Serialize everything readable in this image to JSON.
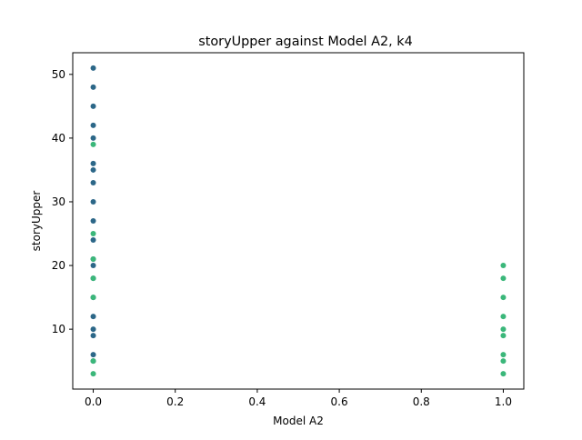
{
  "chart_data": {
    "type": "scatter",
    "title": "storyUpper against Model A2, k4",
    "xlabel": "Model A2",
    "ylabel": "storyUpper",
    "xlim": [
      -0.05,
      1.05
    ],
    "ylim": [
      0.6,
      53.4
    ],
    "xticks": [
      0.0,
      0.2,
      0.4,
      0.6,
      0.8,
      1.0
    ],
    "xtick_labels": [
      "0.0",
      "0.2",
      "0.4",
      "0.6",
      "0.8",
      "1.0"
    ],
    "yticks": [
      10,
      20,
      30,
      40,
      50
    ],
    "ytick_labels": [
      "10",
      "20",
      "30",
      "40",
      "50"
    ],
    "grid": false,
    "legend": "none",
    "colors": {
      "dark": "#2c6788",
      "light": "#3bb77a"
    },
    "series": [
      {
        "color_key": "dark",
        "points": [
          {
            "x": 0,
            "y": 51
          },
          {
            "x": 0,
            "y": 48
          },
          {
            "x": 0,
            "y": 45
          },
          {
            "x": 0,
            "y": 42
          },
          {
            "x": 0,
            "y": 40
          },
          {
            "x": 0,
            "y": 36
          },
          {
            "x": 0,
            "y": 35
          },
          {
            "x": 0,
            "y": 33
          },
          {
            "x": 0,
            "y": 30
          },
          {
            "x": 0,
            "y": 27
          },
          {
            "x": 0,
            "y": 24
          },
          {
            "x": 0,
            "y": 21
          },
          {
            "x": 0,
            "y": 20
          },
          {
            "x": 0,
            "y": 18
          },
          {
            "x": 0,
            "y": 15
          },
          {
            "x": 0,
            "y": 12
          },
          {
            "x": 0,
            "y": 10
          },
          {
            "x": 0,
            "y": 9
          },
          {
            "x": 0,
            "y": 6
          },
          {
            "x": 0,
            "y": 5
          }
        ]
      },
      {
        "color_key": "light",
        "points": [
          {
            "x": 0,
            "y": 39
          },
          {
            "x": 0,
            "y": 25
          },
          {
            "x": 0,
            "y": 21
          },
          {
            "x": 0,
            "y": 18
          },
          {
            "x": 0,
            "y": 15
          },
          {
            "x": 0,
            "y": 5
          },
          {
            "x": 0,
            "y": 3
          },
          {
            "x": 1,
            "y": 20
          },
          {
            "x": 1,
            "y": 18
          },
          {
            "x": 1,
            "y": 15
          },
          {
            "x": 1,
            "y": 12
          },
          {
            "x": 1,
            "y": 10
          },
          {
            "x": 1,
            "y": 9
          },
          {
            "x": 1,
            "y": 6
          },
          {
            "x": 1,
            "y": 5
          },
          {
            "x": 1,
            "y": 3
          }
        ]
      }
    ]
  }
}
